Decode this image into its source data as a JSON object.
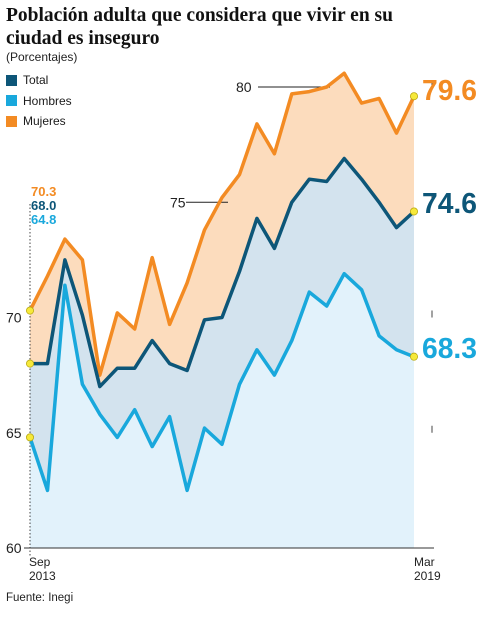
{
  "title": "Población adulta que considera que vivir en su ciudad es inseguro",
  "subtitle": "(Porcentajes)",
  "source": "Fuente: Inegi",
  "chart_data": {
    "type": "area",
    "title": "Población adulta que considera que vivir en su ciudad es inseguro",
    "subtitle": "(Porcentajes)",
    "ylim": [
      60,
      81
    ],
    "yticks": [
      60,
      65,
      70,
      75,
      80
    ],
    "x_labels": [
      {
        "line1": "Sep",
        "line2": "2013"
      },
      {
        "line1": "Mar",
        "line2": "2019"
      }
    ],
    "legend_position": "top-left",
    "series": [
      {
        "name": "Total",
        "color": "#0d5678",
        "start_label": "68.0",
        "end_label": "74.6",
        "values": [
          68.0,
          68.0,
          72.5,
          70.1,
          67.0,
          67.8,
          67.8,
          69.0,
          68.0,
          67.7,
          69.9,
          70.0,
          72.0,
          74.3,
          73.0,
          75.0,
          76.0,
          75.9,
          76.9,
          76.0,
          75.0,
          73.9,
          74.6
        ]
      },
      {
        "name": "Hombres",
        "color": "#19a8dc",
        "start_label": "64.8",
        "end_label": "68.3",
        "values": [
          64.8,
          62.5,
          71.4,
          67.1,
          65.8,
          64.8,
          66.0,
          64.4,
          65.7,
          62.5,
          65.2,
          64.5,
          67.1,
          68.6,
          67.5,
          69.0,
          71.1,
          70.5,
          71.9,
          71.2,
          69.2,
          68.6,
          68.3
        ]
      },
      {
        "name": "Mujeres",
        "color": "#f38b23",
        "start_label": "70.3",
        "end_label": "79.6",
        "values": [
          70.3,
          71.8,
          73.4,
          72.5,
          67.5,
          70.2,
          69.5,
          72.6,
          69.7,
          71.5,
          73.8,
          75.2,
          76.2,
          78.4,
          77.1,
          79.7,
          79.8,
          80.0,
          80.6,
          79.3,
          79.5,
          78.0,
          79.6
        ]
      }
    ]
  }
}
